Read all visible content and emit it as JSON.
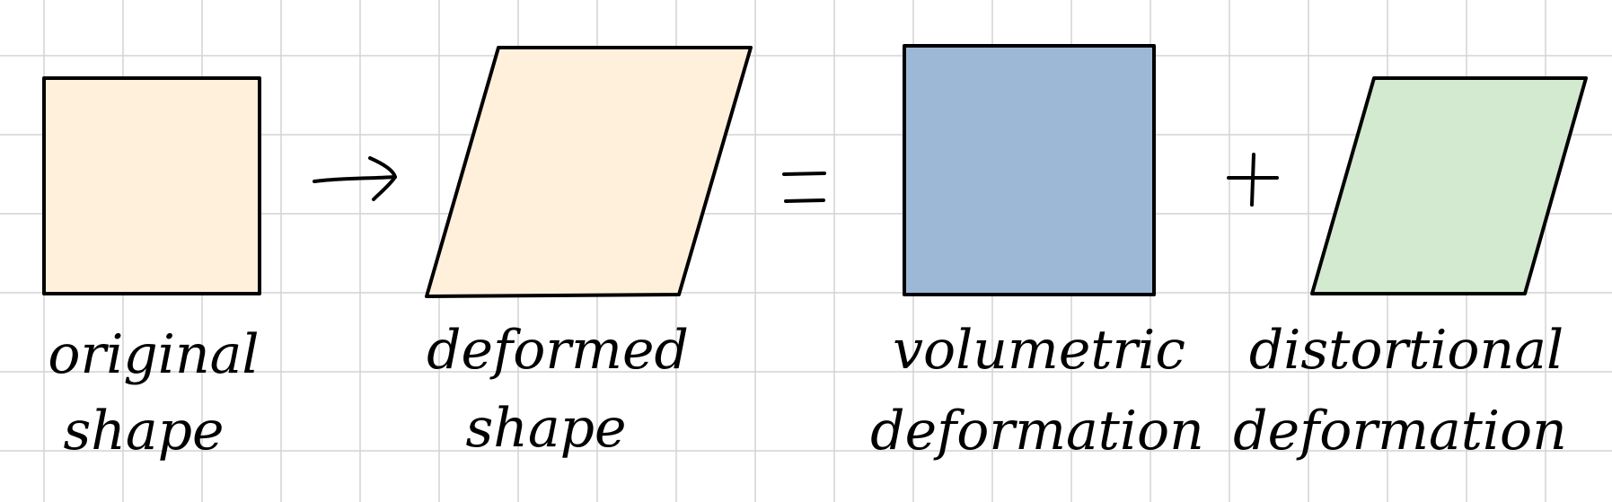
{
  "colors": {
    "background": "#ffffff",
    "grid": "#d4d4d4",
    "stroke": "#000000",
    "original_fill": "#fff0dc",
    "deformed_fill": "#fff0dc",
    "volumetric_fill": "#9db8d7",
    "distortional_fill": "#d4ead0"
  },
  "diagram": {
    "shapes": [
      {
        "id": "original",
        "kind": "square",
        "label_line1": "original",
        "label_line2": "shape"
      },
      {
        "id": "deformed",
        "kind": "parallelogram",
        "label_line1": "deformed",
        "label_line2": "shape"
      },
      {
        "id": "volumetric",
        "kind": "square",
        "label_line1": "volumetric",
        "label_line2": "deformation"
      },
      {
        "id": "distortional",
        "kind": "parallelogram",
        "label_line1": "distortional",
        "label_line2": "deformation"
      }
    ],
    "operators": [
      "arrow",
      "equals",
      "plus"
    ]
  }
}
